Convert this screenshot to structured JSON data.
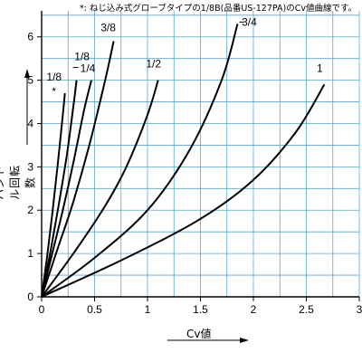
{
  "note": "*: ねじ込み式グローブタイプの1/8B(品番US-127PA)のCv値曲線です。",
  "colors": {
    "grid": "#5aa6cf",
    "axis": "#000000",
    "curve": "#000000"
  },
  "chart_data": {
    "type": "line",
    "xlabel": "Cv値",
    "ylabel": "ハンドル回転数",
    "xlim": [
      0,
      3
    ],
    "ylim": [
      0,
      6.6
    ],
    "xticks": [
      0,
      0.5,
      1,
      1.5,
      2,
      2.5,
      3
    ],
    "xtick_labels": [
      "0",
      "0.5",
      "1",
      "1.5",
      "2",
      "2.5",
      "3"
    ],
    "yticks": [
      0,
      1,
      2,
      3,
      4,
      5,
      6
    ],
    "ytick_labels": [
      "0",
      "1",
      "2",
      "3",
      "4",
      "5",
      "6"
    ],
    "grid": true,
    "series": [
      {
        "name": "1/8 *",
        "x": [
          0,
          0.05,
          0.1,
          0.15,
          0.2,
          0.22
        ],
        "y": [
          0,
          0.9,
          1.9,
          3.0,
          4.2,
          4.7
        ]
      },
      {
        "name": "1/8",
        "x": [
          0,
          0.08,
          0.16,
          0.24,
          0.3,
          0.33
        ],
        "y": [
          0,
          1.0,
          2.1,
          3.3,
          4.4,
          5.0
        ]
      },
      {
        "name": "1/4",
        "x": [
          0,
          0.1,
          0.2,
          0.3,
          0.4,
          0.47
        ],
        "y": [
          0,
          1.0,
          2.0,
          3.1,
          4.3,
          5.0
        ]
      },
      {
        "name": "3/8",
        "x": [
          0,
          0.15,
          0.3,
          0.45,
          0.6,
          0.68
        ],
        "y": [
          0,
          1.1,
          2.2,
          3.5,
          5.0,
          5.9
        ]
      },
      {
        "name": "1/2",
        "x": [
          0,
          0.3,
          0.6,
          0.8,
          1.0,
          1.1
        ],
        "y": [
          0,
          1.0,
          2.1,
          3.0,
          4.2,
          5.0
        ]
      },
      {
        "name": "3/4",
        "x": [
          0,
          0.5,
          1.0,
          1.4,
          1.7,
          1.85
        ],
        "y": [
          0,
          0.9,
          2.0,
          3.4,
          5.0,
          6.3
        ]
      },
      {
        "name": "1",
        "x": [
          0,
          0.8,
          1.5,
          2.0,
          2.4,
          2.67
        ],
        "y": [
          0,
          0.9,
          1.8,
          2.7,
          3.8,
          4.9
        ]
      }
    ]
  }
}
